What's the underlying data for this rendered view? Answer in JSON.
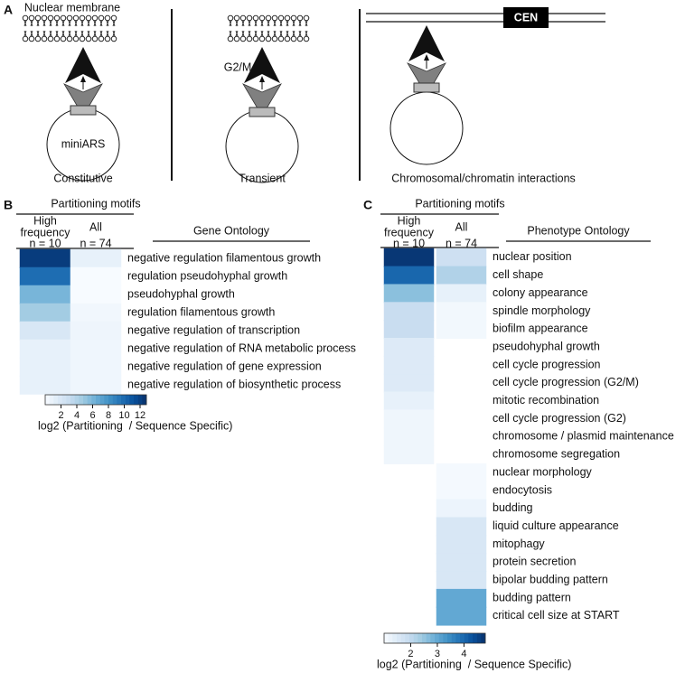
{
  "panel_a": {
    "label": "A",
    "membrane_label": "Nuclear membrane",
    "miniars": "miniARS",
    "g2m": "G2/M",
    "cen": "CEN",
    "captions": [
      "Constitutive",
      "Transient",
      "Chromosomal/chromatin interactions"
    ]
  },
  "panel_b": {
    "label": "B",
    "group_title": "Partitioning motifs",
    "high_header": [
      "High",
      "frequency"
    ],
    "high_n": "n = 10",
    "all_header": "All",
    "all_n": "n = 74",
    "ontology_title": "Gene Ontology",
    "rows": [
      "negative regulation filamentous growth",
      "regulation pseudohyphal growth",
      "pseudohyphal growth",
      "regulation filamentous growth",
      "negative regulation of transcription",
      "negative regulation of RNA metabolic process",
      "negative regulation of gene expression",
      "negative regulation of biosynthetic process"
    ],
    "high": [
      12.2,
      9.8,
      6,
      4.6,
      2,
      1,
      1,
      1
    ],
    "all": [
      1,
      0,
      0,
      0.4,
      0.6,
      0.5,
      0.5,
      0.5
    ],
    "clim": [
      0,
      12.8
    ],
    "cticks": [
      2,
      4,
      6,
      8,
      10,
      12
    ],
    "colorbar_label": "log2 (Partitioning  / Sequence Specific)"
  },
  "panel_c": {
    "label": "C",
    "group_title": "Partitioning motifs",
    "high_header": [
      "High",
      "frequency"
    ],
    "high_n": "n = 10",
    "all_header": "All",
    "all_n": "n = 74",
    "ontology_title": "Phenotype Ontology",
    "rows": [
      "nuclear position",
      "cell shape",
      "colony appearance",
      "spindle morphology",
      "biofilm appearance",
      "pseudohyphal growth",
      "cell cycle progression",
      "cell cycle progression (G2/M)",
      "mitotic recombination",
      "cell cycle progression (G2)",
      "chromosome / plasmid maintenance",
      "chromosome segregation",
      "nuclear morphology",
      "endocytosis",
      "budding",
      "liquid culture appearance",
      "mitophagy",
      "protein secretion",
      "bipolar budding pattern",
      "budding pattern",
      "critical cell size at START"
    ],
    "high": [
      4.7,
      4.0,
      2.6,
      1.9,
      1.9,
      1.5,
      1.5,
      1.5,
      1.3,
      1.15,
      1.15,
      1.15,
      null,
      null,
      null,
      null,
      null,
      null,
      null,
      null,
      null
    ],
    "all": [
      1.8,
      2.2,
      1.3,
      1.1,
      1.1,
      null,
      null,
      null,
      null,
      null,
      null,
      null,
      1.05,
      1.05,
      1.2,
      1.6,
      1.6,
      1.6,
      1.6,
      3.0,
      3.0
    ],
    "clim": [
      1,
      4.8
    ],
    "cticks": [
      2,
      3,
      4
    ],
    "colorbar_label": "log2 (Partitioning  / Sequence Specific)"
  }
}
